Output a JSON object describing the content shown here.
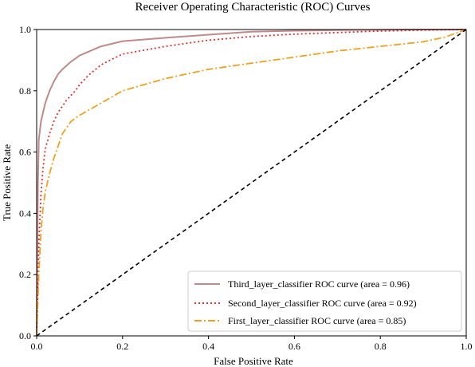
{
  "chart_data": {
    "type": "line",
    "title": "Receiver Operating Characteristic (ROC) Curves",
    "xlabel": "False Positive Rate",
    "ylabel": "True Positive Rate",
    "xlim": [
      0.0,
      1.0
    ],
    "ylim": [
      0.0,
      1.0
    ],
    "xticks": [
      "0.0",
      "0.2",
      "0.4",
      "0.6",
      "0.8",
      "1.0"
    ],
    "yticks": [
      "0.0",
      "0.2",
      "0.4",
      "0.6",
      "0.8",
      "1.0"
    ],
    "grid": false,
    "legend_position": "lower-right",
    "series": [
      {
        "name": "Third_layer_classifier ROC curve (area = 0.96)",
        "color": "#c08a8a",
        "style": "solid",
        "x": [
          0.0,
          0.003,
          0.005,
          0.01,
          0.015,
          0.02,
          0.03,
          0.04,
          0.05,
          0.06,
          0.08,
          0.1,
          0.15,
          0.2,
          0.3,
          0.4,
          0.5,
          0.6,
          0.7,
          0.8,
          0.9,
          1.0
        ],
        "y": [
          0.0,
          0.5,
          0.64,
          0.7,
          0.73,
          0.76,
          0.8,
          0.83,
          0.855,
          0.87,
          0.895,
          0.915,
          0.945,
          0.962,
          0.973,
          0.983,
          0.993,
          0.996,
          0.998,
          0.999,
          1.0,
          1.0
        ]
      },
      {
        "name": "Second_layer_classifier ROC curve (area = 0.92)",
        "color": "#e03030",
        "style": "dotted",
        "x": [
          0.0,
          0.005,
          0.01,
          0.015,
          0.02,
          0.03,
          0.04,
          0.05,
          0.07,
          0.09,
          0.1,
          0.12,
          0.15,
          0.2,
          0.3,
          0.4,
          0.5,
          0.6,
          0.7,
          0.8,
          0.9,
          1.0
        ],
        "y": [
          0.0,
          0.3,
          0.46,
          0.55,
          0.61,
          0.66,
          0.7,
          0.73,
          0.77,
          0.8,
          0.82,
          0.85,
          0.885,
          0.92,
          0.945,
          0.965,
          0.977,
          0.985,
          0.99,
          0.995,
          0.998,
          1.0
        ]
      },
      {
        "name": "First_layer_classifier ROC curve (area = 0.85)",
        "color": "#f0a020",
        "style": "dashdot",
        "x": [
          0.0,
          0.005,
          0.01,
          0.015,
          0.02,
          0.03,
          0.04,
          0.05,
          0.06,
          0.08,
          0.1,
          0.15,
          0.2,
          0.25,
          0.3,
          0.4,
          0.5,
          0.6,
          0.7,
          0.8,
          0.9,
          0.95,
          1.0
        ],
        "y": [
          0.0,
          0.2,
          0.34,
          0.42,
          0.47,
          0.53,
          0.58,
          0.62,
          0.66,
          0.7,
          0.72,
          0.76,
          0.8,
          0.82,
          0.84,
          0.87,
          0.89,
          0.91,
          0.93,
          0.945,
          0.96,
          0.975,
          1.0
        ]
      },
      {
        "color": "#000000",
        "style": "dashed",
        "x": [
          0.0,
          1.0
        ],
        "y": [
          0.0,
          1.0
        ]
      }
    ]
  }
}
